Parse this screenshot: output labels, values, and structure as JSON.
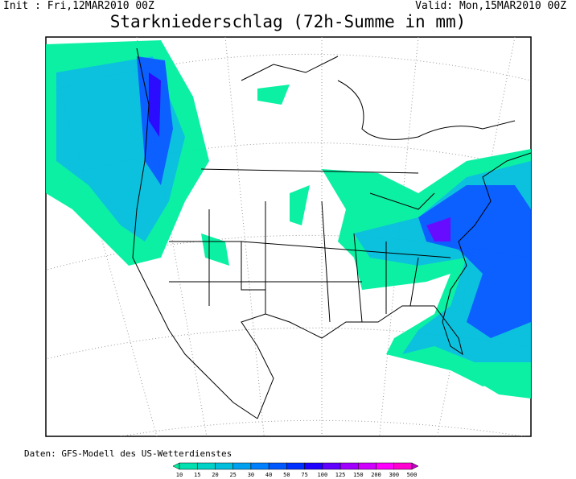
{
  "header": {
    "init": "Init : Fri,12MAR2010 00Z",
    "valid": "Valid: Mon,15MAR2010 00Z",
    "title": "Starkniederschlag (72h-Summe in mm)"
  },
  "footer": "Daten: GFS-Modell des US-Wetterdienstes",
  "legend": {
    "labels": [
      "10",
      "15",
      "20",
      "25",
      "30",
      "40",
      "50",
      "75",
      "100",
      "125",
      "150",
      "200",
      "300",
      "500"
    ],
    "colors": [
      "#00f0a0",
      "#00e0b0",
      "#00d2c8",
      "#00bedc",
      "#00a0f0",
      "#0080ff",
      "#0058ff",
      "#0030ff",
      "#2000ff",
      "#6000ff",
      "#a000ff",
      "#d000ff",
      "#ff00ff",
      "#ff00d0",
      "#c800c8"
    ]
  }
}
